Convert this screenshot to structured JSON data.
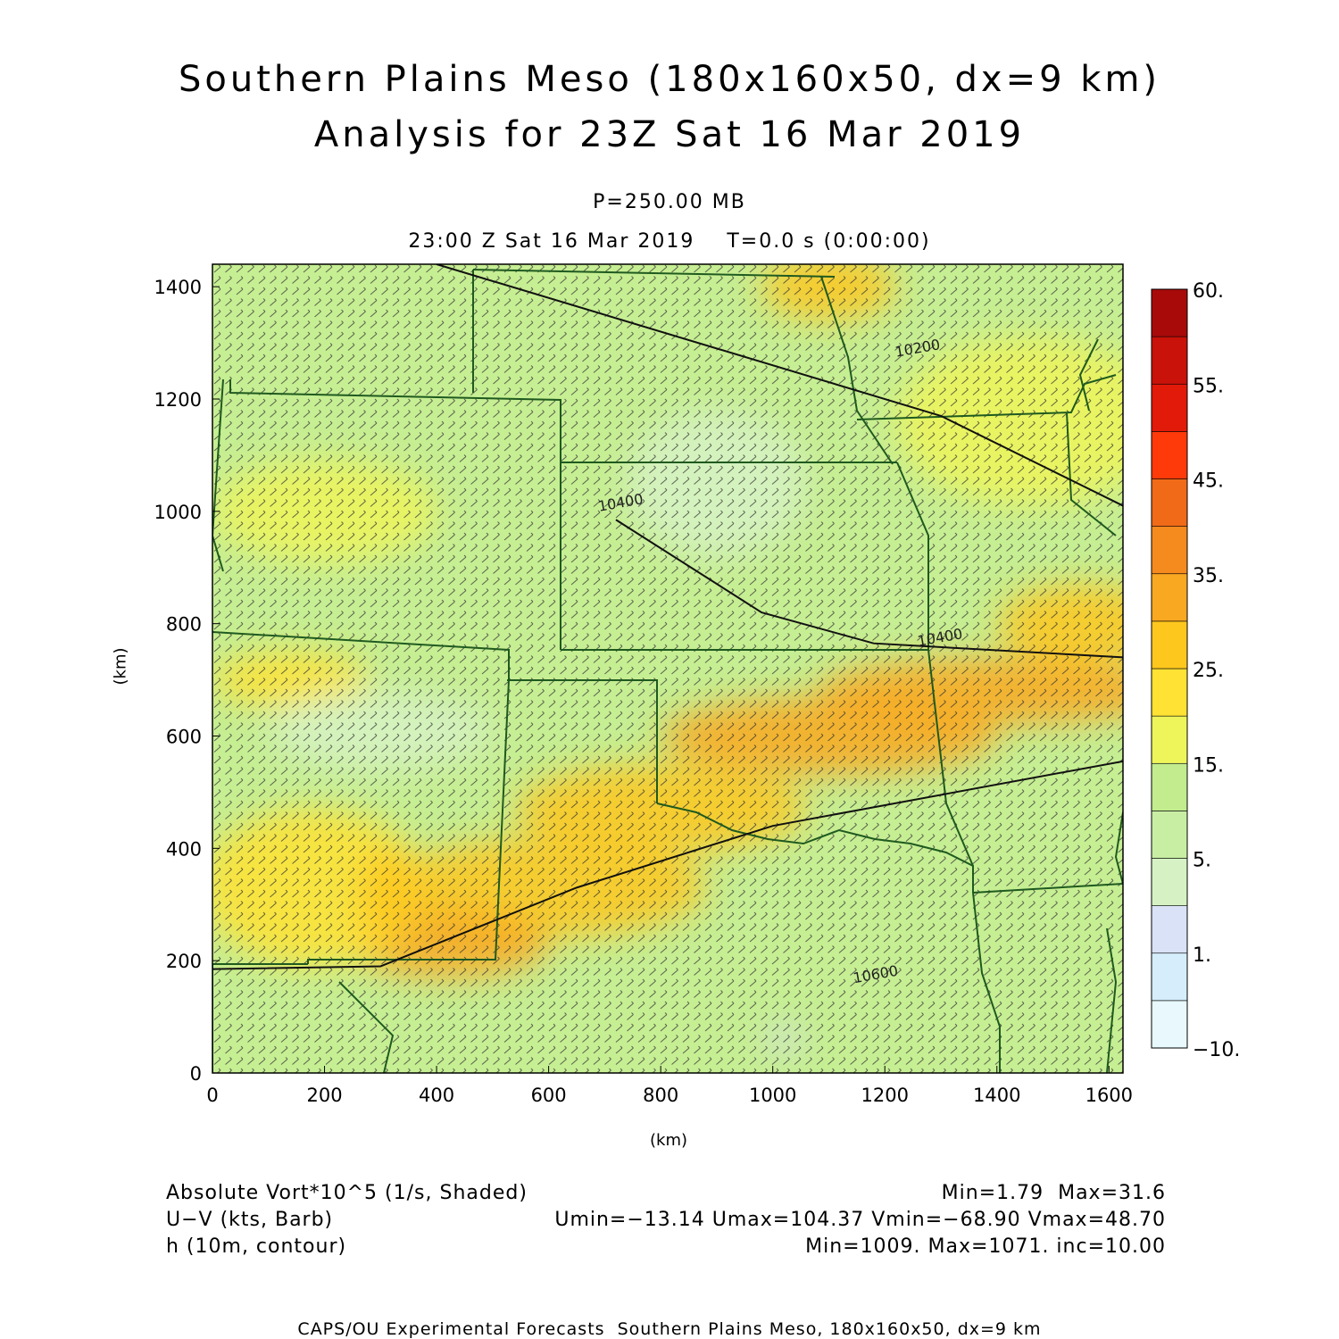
{
  "header": {
    "title_line1": "Southern Plains Meso (180x160x50, dx=9 km)",
    "title_line2": "Analysis for 23Z Sat 16 Mar 2019",
    "level": "P=250.00 MB",
    "valid_time": "23:00 Z Sat 16 Mar 2019    T=0.0 s (0:00:00)"
  },
  "footer": {
    "field1_label": "Absolute Vort*10^5 (1/s, Shaded)",
    "field1_stats": "Min=1.79  Max=31.6",
    "field2_label": "U−V (kts, Barb)",
    "field2_stats": "Umin=−13.14 Umax=104.37 Vmin=−68.90 Vmax=48.70",
    "field3_label": "h (10m, contour)",
    "field3_stats": "Min=1009. Max=1071. inc=10.00",
    "credit": "CAPS/OU Experimental Forecasts  Southern Plains Meso, 180x160x50, dx=9 km"
  },
  "colors": {
    "light_green": "#d2f2a8",
    "green": "#c3ec8e",
    "yellow_green": "#e8f27a",
    "yellow": "#f5e63c",
    "orange_yellow": "#f7c52c",
    "orange": "#f59a29",
    "dark_orange": "#ef7a24",
    "border_green": "#1f5a1f",
    "barb": "#333333"
  },
  "chart_data": {
    "type": "heatmap",
    "xlabel": "(km)",
    "ylabel": "(km)",
    "xlim": [
      0,
      1625
    ],
    "ylim": [
      0,
      1440
    ],
    "xticks": [
      0,
      200,
      400,
      600,
      800,
      1000,
      1200,
      1400,
      1600
    ],
    "yticks": [
      0,
      200,
      400,
      600,
      800,
      1000,
      1200,
      1400
    ],
    "colorbar": {
      "levels": [
        -10,
        0,
        1,
        3,
        5,
        10,
        15,
        20,
        25,
        30,
        35,
        40,
        45,
        50,
        55,
        60
      ],
      "labels": [
        {
          "text": "60.",
          "value": 60
        },
        {
          "text": "55.",
          "value": 55
        },
        {
          "text": "45.",
          "value": 45
        },
        {
          "text": "35.",
          "value": 35
        },
        {
          "text": "25.",
          "value": 25
        },
        {
          "text": "15.",
          "value": 15
        },
        {
          "text": "5.",
          "value": 5
        },
        {
          "text": "1.",
          "value": 1
        },
        {
          "text": "−10.",
          "value": -10
        }
      ],
      "colors": [
        "#e8f8fc",
        "#d6eefb",
        "#d9e2f7",
        "#d6f2c4",
        "#c8eea4",
        "#c3ec8e",
        "#eef55a",
        "#ffe234",
        "#fdc71e",
        "#f9a822",
        "#f58a1e",
        "#f06a18",
        "#ff3a0a",
        "#e21a0a",
        "#c8120a",
        "#a80a0a"
      ]
    },
    "contours": [
      {
        "label": "10200",
        "points": [
          [
            400,
            1440
          ],
          [
            1300,
            1170
          ],
          [
            1625,
            1010
          ]
        ]
      },
      {
        "label": "10400",
        "points": [
          [
            720,
            985
          ],
          [
            980,
            820
          ],
          [
            1180,
            765
          ],
          [
            1625,
            740
          ]
        ]
      },
      {
        "label": "10600",
        "points": [
          [
            0,
            185
          ],
          [
            300,
            190
          ],
          [
            650,
            330
          ],
          [
            1000,
            440
          ],
          [
            1625,
            555
          ]
        ]
      }
    ],
    "contour_labels": [
      {
        "text": "10200",
        "x": 1220,
        "y": 1275
      },
      {
        "text": "10400",
        "x": 690,
        "y": 1000
      },
      {
        "text": "10400",
        "x": 1260,
        "y": 760
      },
      {
        "text": "10600",
        "x": 1145,
        "y": 160
      }
    ],
    "vorticity_blobs": [
      {
        "x": 1400,
        "y": 680,
        "rx": 320,
        "ry": 60,
        "value": 32
      },
      {
        "x": 1100,
        "y": 600,
        "rx": 300,
        "ry": 70,
        "value": 30
      },
      {
        "x": 800,
        "y": 470,
        "rx": 260,
        "ry": 80,
        "value": 26
      },
      {
        "x": 600,
        "y": 330,
        "rx": 280,
        "ry": 90,
        "value": 27
      },
      {
        "x": 420,
        "y": 230,
        "rx": 180,
        "ry": 60,
        "value": 30
      },
      {
        "x": 180,
        "y": 330,
        "rx": 200,
        "ry": 140,
        "value": 23
      },
      {
        "x": 320,
        "y": 320,
        "rx": 60,
        "ry": 80,
        "value": 28
      },
      {
        "x": 1550,
        "y": 800,
        "rx": 150,
        "ry": 70,
        "value": 25
      },
      {
        "x": 1460,
        "y": 1160,
        "rx": 240,
        "ry": 150,
        "value": 17
      },
      {
        "x": 1100,
        "y": 1400,
        "rx": 120,
        "ry": 60,
        "value": 25
      },
      {
        "x": 200,
        "y": 1000,
        "rx": 200,
        "ry": 90,
        "value": 17
      },
      {
        "x": 140,
        "y": 700,
        "rx": 140,
        "ry": 50,
        "value": 20
      },
      {
        "x": 300,
        "y": 610,
        "rx": 200,
        "ry": 70,
        "value": 4
      },
      {
        "x": 900,
        "y": 1050,
        "rx": 160,
        "ry": 130,
        "value": 4
      },
      {
        "x": 1020,
        "y": 60,
        "rx": 30,
        "ry": 20,
        "value": 2
      }
    ]
  }
}
